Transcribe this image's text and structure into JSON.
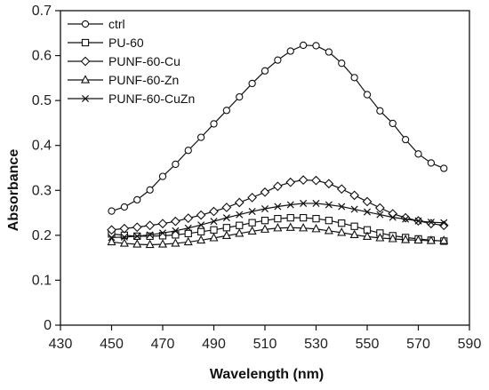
{
  "chart_data": {
    "type": "line",
    "title": "",
    "xlabel": "Wavelength (nm)",
    "ylabel": "Absorbance",
    "xlim": [
      430,
      590
    ],
    "ylim": [
      0,
      0.7
    ],
    "xticks": [
      430,
      450,
      470,
      490,
      510,
      530,
      550,
      570,
      590
    ],
    "yticks": [
      0,
      0.1,
      0.2,
      0.3,
      0.4,
      0.5,
      0.6,
      0.7
    ],
    "grid": false,
    "legend_position": "top-left",
    "x": [
      450,
      455,
      460,
      465,
      470,
      475,
      480,
      485,
      490,
      495,
      500,
      505,
      510,
      515,
      520,
      525,
      530,
      535,
      540,
      545,
      550,
      555,
      560,
      565,
      570,
      575,
      580
    ],
    "series": [
      {
        "name": "ctrl",
        "marker": "circle",
        "color": "#111111",
        "values": [
          0.254,
          0.263,
          0.279,
          0.301,
          0.331,
          0.358,
          0.389,
          0.418,
          0.448,
          0.478,
          0.508,
          0.538,
          0.566,
          0.59,
          0.61,
          0.623,
          0.622,
          0.608,
          0.583,
          0.551,
          0.513,
          0.477,
          0.449,
          0.413,
          0.381,
          0.361,
          0.349
        ]
      },
      {
        "name": "PU-60",
        "marker": "square",
        "color": "#111111",
        "values": [
          0.203,
          0.2,
          0.198,
          0.198,
          0.199,
          0.201,
          0.204,
          0.208,
          0.212,
          0.217,
          0.222,
          0.228,
          0.233,
          0.237,
          0.239,
          0.239,
          0.237,
          0.233,
          0.227,
          0.22,
          0.212,
          0.205,
          0.199,
          0.195,
          0.192,
          0.189,
          0.187
        ]
      },
      {
        "name": "PUNF-60-Cu",
        "marker": "diamond",
        "color": "#111111",
        "values": [
          0.212,
          0.215,
          0.218,
          0.222,
          0.226,
          0.231,
          0.238,
          0.245,
          0.253,
          0.262,
          0.273,
          0.284,
          0.296,
          0.309,
          0.318,
          0.323,
          0.322,
          0.315,
          0.303,
          0.289,
          0.275,
          0.261,
          0.248,
          0.239,
          0.232,
          0.226,
          0.222
        ]
      },
      {
        "name": "PUNF-60-Zn",
        "marker": "triangle",
        "color": "#111111",
        "values": [
          0.185,
          0.182,
          0.18,
          0.179,
          0.18,
          0.182,
          0.185,
          0.189,
          0.194,
          0.199,
          0.204,
          0.209,
          0.213,
          0.216,
          0.217,
          0.216,
          0.214,
          0.21,
          0.206,
          0.201,
          0.197,
          0.194,
          0.192,
          0.19,
          0.189,
          0.188,
          0.188
        ]
      },
      {
        "name": "PUNF-60-CuZn",
        "marker": "x",
        "color": "#111111",
        "values": [
          0.195,
          0.196,
          0.198,
          0.201,
          0.205,
          0.21,
          0.216,
          0.223,
          0.231,
          0.239,
          0.246,
          0.253,
          0.259,
          0.264,
          0.268,
          0.271,
          0.271,
          0.268,
          0.264,
          0.258,
          0.252,
          0.246,
          0.24,
          0.236,
          0.232,
          0.229,
          0.228
        ]
      }
    ]
  }
}
